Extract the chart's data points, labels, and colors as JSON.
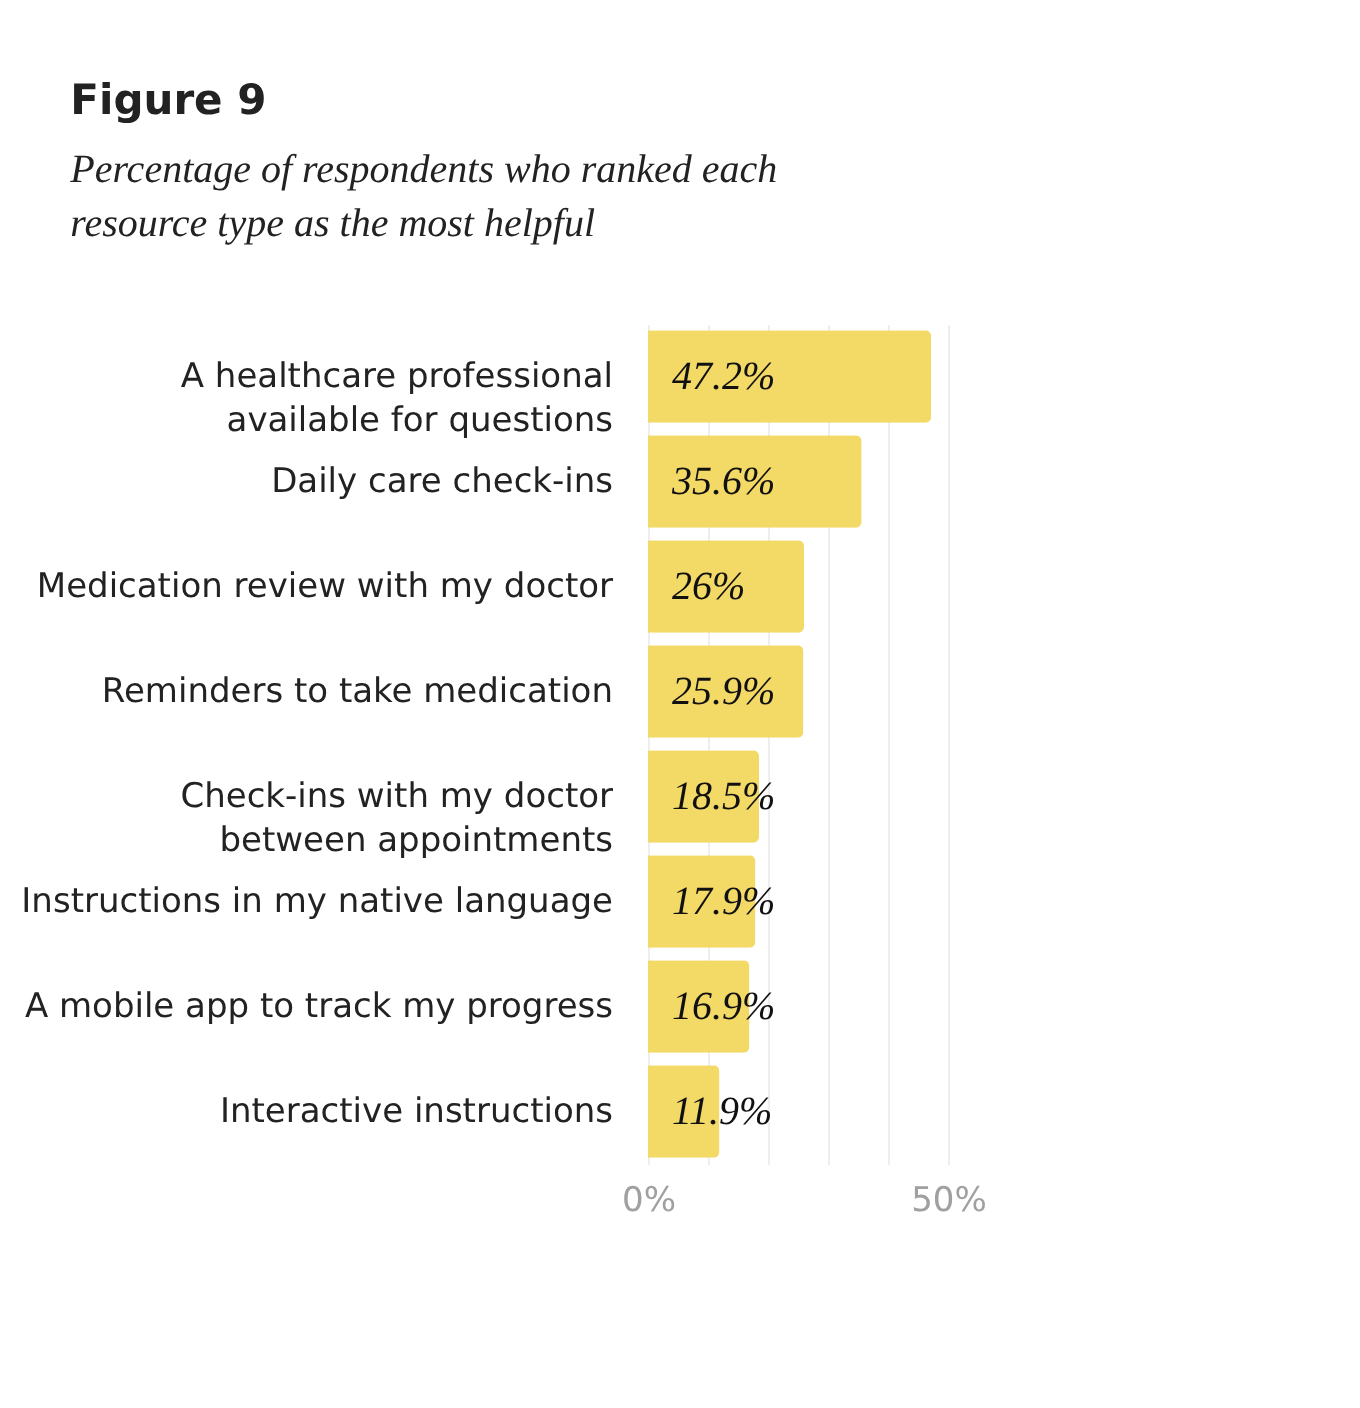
{
  "chart_data": {
    "type": "bar",
    "orientation": "horizontal",
    "title": "Figure 9",
    "subtitle": "Percentage of respondents who ranked each resource type as the most helpful",
    "categories": [
      "A healthcare professional available for questions",
      "Daily care check-ins",
      "Medication review with my doctor",
      "Reminders to take medication",
      "Check-ins with my doctor between appointments",
      "Instructions in my native language",
      "A mobile app to track my progress",
      "Interactive instructions"
    ],
    "values": [
      47.2,
      35.6,
      26,
      25.9,
      18.5,
      17.9,
      16.9,
      11.9
    ],
    "value_labels": [
      "47.2%",
      "35.6%",
      "26%",
      "25.9%",
      "18.5%",
      "17.9%",
      "16.9%",
      "11.9%"
    ],
    "color": "#f3d966",
    "xlim": [
      0,
      50
    ],
    "xticks": [
      {
        "value": 0,
        "label": "0%"
      },
      {
        "value": 10,
        "label": null
      },
      {
        "value": 20,
        "label": null
      },
      {
        "value": 30,
        "label": null
      },
      {
        "value": 40,
        "label": null
      },
      {
        "value": 50,
        "label": "50%"
      }
    ],
    "grid": "x"
  }
}
